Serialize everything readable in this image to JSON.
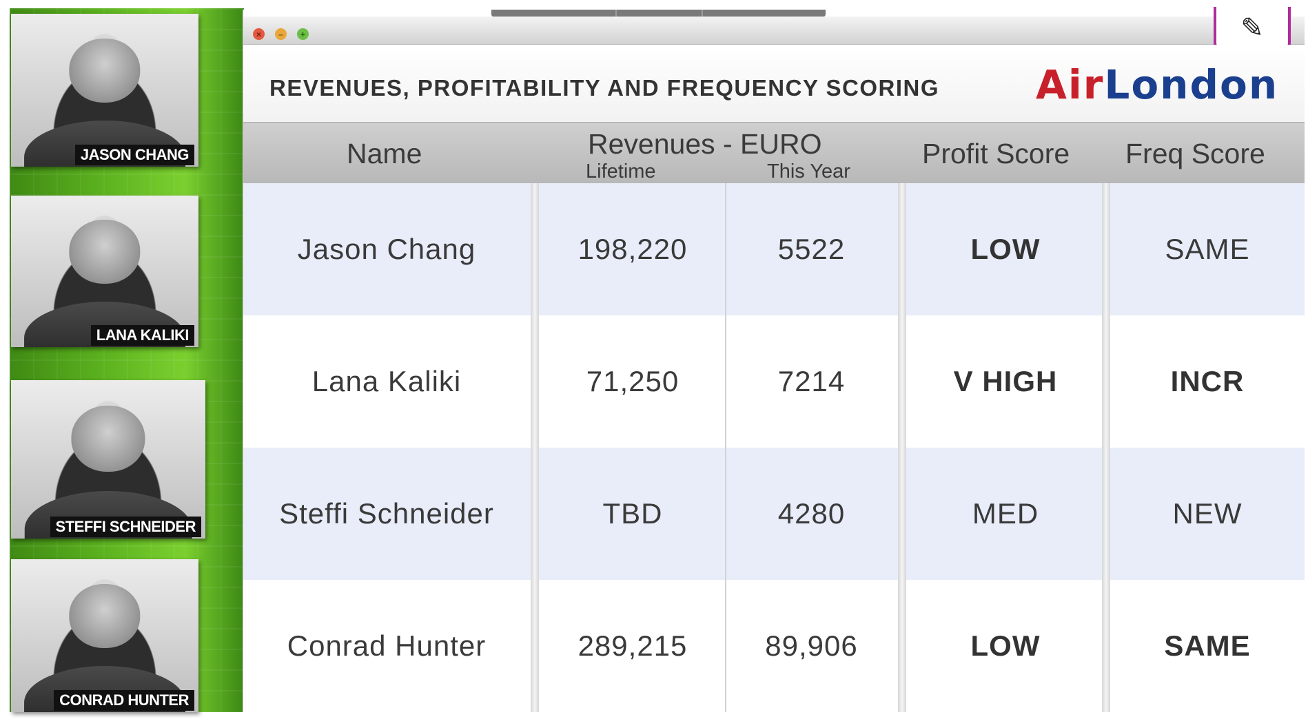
{
  "people": [
    {
      "name_tag": "JASON CHANG"
    },
    {
      "name_tag": "LANA KALIKI"
    },
    {
      "name_tag": "STEFFI SCHNEIDER"
    },
    {
      "name_tag": "CONRAD HUNTER"
    }
  ],
  "window": {
    "title": "REVENUES, PROFITABILITY AND FREQUENCY SCORING",
    "logo_air": "Air",
    "logo_london": "London",
    "edit_icon": "pen-icon"
  },
  "table": {
    "headers": {
      "name": "Name",
      "revenues": "Revenues - EURO",
      "lifetime": "Lifetime",
      "this_year": "This Year",
      "profit": "Profit Score",
      "freq": "Freq Score"
    },
    "rows": [
      {
        "name": "Jason Chang",
        "lifetime": "198,220",
        "this_year": "5522",
        "profit": "LOW",
        "freq": "SAME"
      },
      {
        "name": "Lana Kaliki",
        "lifetime": "71,250",
        "this_year": "7214",
        "profit": "V HIGH",
        "freq": "INCR"
      },
      {
        "name": "Steffi Schneider",
        "lifetime": "TBD",
        "this_year": "4280",
        "profit": "MED",
        "freq": "NEW"
      },
      {
        "name": "Conrad Hunter",
        "lifetime": "289,215",
        "this_year": "89,906",
        "profit": "LOW",
        "freq": "SAME"
      }
    ]
  },
  "colors": {
    "logo_air": "#c8202a",
    "logo_london": "#1b3f8f",
    "row_alt": "#e8edf9",
    "sidebar_green": "#5cb21f"
  }
}
